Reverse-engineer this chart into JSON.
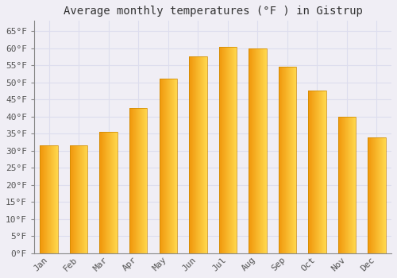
{
  "title": "Average monthly temperatures (°F ) in Gistrup",
  "months": [
    "Jan",
    "Feb",
    "Mar",
    "Apr",
    "May",
    "Jun",
    "Jul",
    "Aug",
    "Sep",
    "Oct",
    "Nov",
    "Dec"
  ],
  "values": [
    31.5,
    31.5,
    35.5,
    42.5,
    51.0,
    57.5,
    60.5,
    60.0,
    54.5,
    47.5,
    40.0,
    34.0
  ],
  "bar_color_left": "#F0960A",
  "bar_color_right": "#FFD84D",
  "background_color": "#F0EEF5",
  "grid_color": "#DDDDEE",
  "ylim": [
    0,
    68
  ],
  "yticks": [
    0,
    5,
    10,
    15,
    20,
    25,
    30,
    35,
    40,
    45,
    50,
    55,
    60,
    65
  ],
  "title_fontsize": 10,
  "tick_fontsize": 8,
  "font_family": "monospace"
}
